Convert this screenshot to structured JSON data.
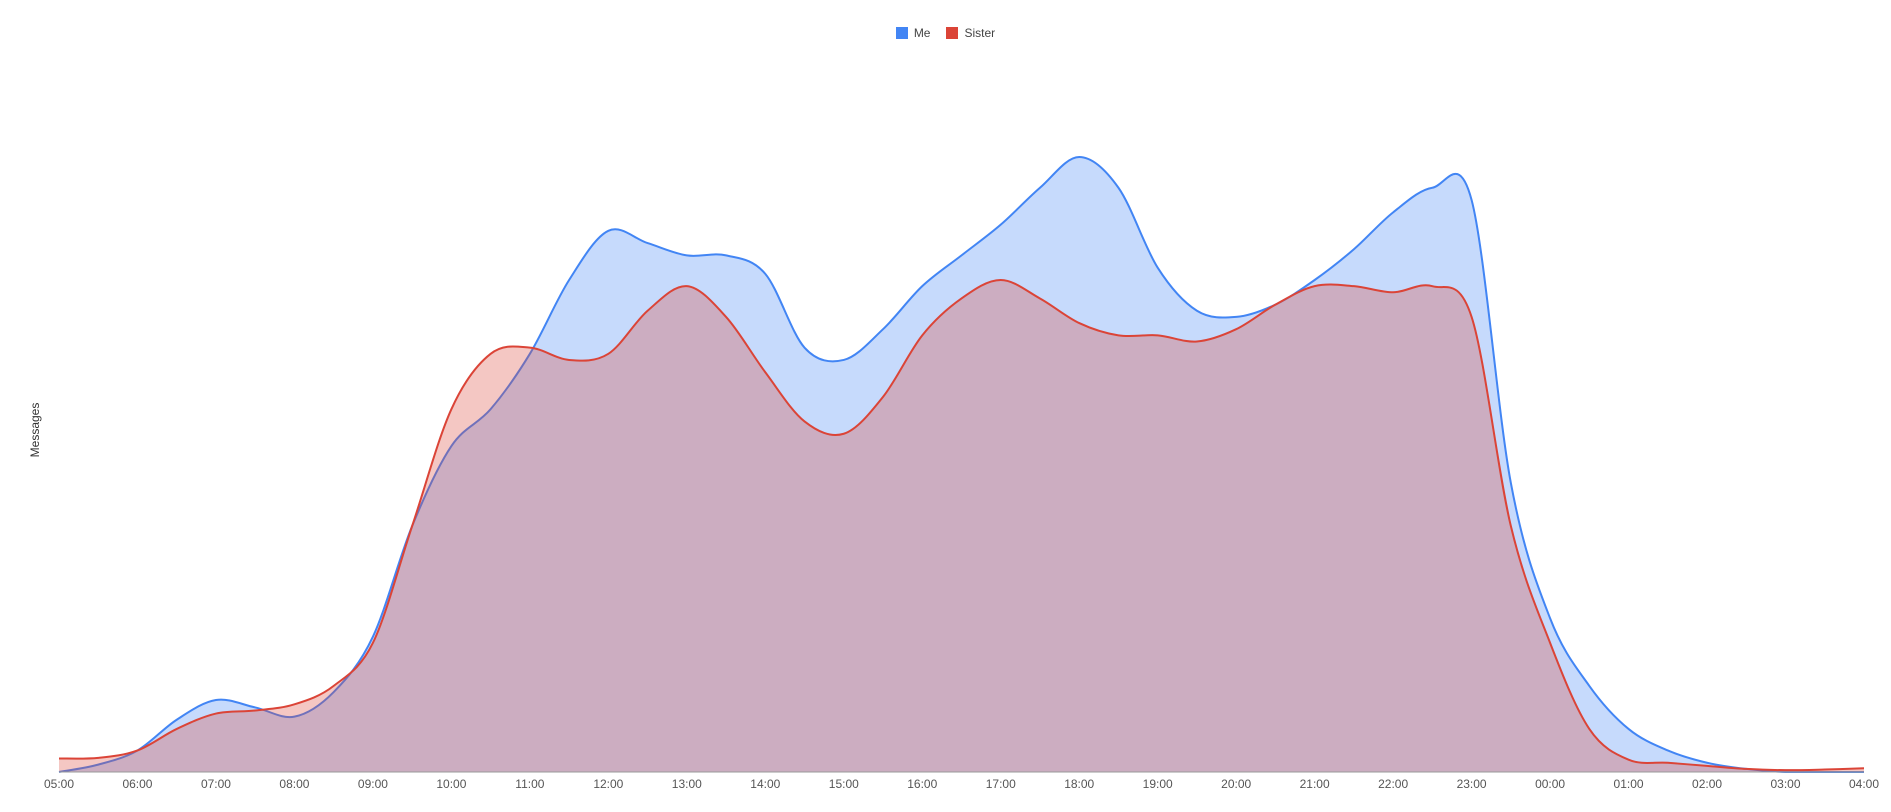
{
  "chart_data": {
    "type": "area",
    "title": "",
    "xlabel": "",
    "ylabel": "Messages",
    "legend_position": "top-center",
    "grid": false,
    "ylim": [
      0,
      100
    ],
    "x": [
      "05:00",
      "05:30",
      "06:00",
      "06:30",
      "07:00",
      "07:30",
      "08:00",
      "08:30",
      "09:00",
      "09:30",
      "10:00",
      "10:30",
      "11:00",
      "11:30",
      "12:00",
      "12:30",
      "13:00",
      "13:30",
      "14:00",
      "14:30",
      "15:00",
      "15:30",
      "16:00",
      "16:30",
      "17:00",
      "17:30",
      "18:00",
      "18:30",
      "19:00",
      "19:30",
      "20:00",
      "20:30",
      "21:00",
      "21:30",
      "22:00",
      "22:30",
      "23:00",
      "23:30",
      "00:00",
      "00:30",
      "01:00",
      "01:30",
      "02:00",
      "02:30",
      "03:00",
      "03:30",
      "04:00"
    ],
    "ticks": [
      "05:00",
      "06:00",
      "07:00",
      "08:00",
      "09:00",
      "10:00",
      "11:00",
      "12:00",
      "13:00",
      "14:00",
      "15:00",
      "16:00",
      "17:00",
      "18:00",
      "19:00",
      "20:00",
      "21:00",
      "22:00",
      "23:00",
      "00:00",
      "01:00",
      "02:00",
      "03:00",
      "04:00"
    ],
    "series": [
      {
        "name": "Me",
        "color": "#4285f4",
        "fill": "rgba(66,133,244,0.30)",
        "values": [
          0,
          1.2,
          3.5,
          8.5,
          11.7,
          10.5,
          9,
          13,
          22,
          40,
          53,
          59,
          68,
          80,
          88,
          86,
          84,
          84,
          81,
          69,
          67,
          72,
          79,
          84,
          89,
          95,
          100,
          95,
          82,
          75,
          74,
          76,
          80,
          85,
          91,
          95,
          93,
          47,
          25,
          14,
          7,
          3.5,
          1.5,
          0.5,
          0,
          0,
          0
        ]
      },
      {
        "name": "Sister",
        "color": "#db4437",
        "fill": "rgba(219,68,55,0.30)",
        "values": [
          2.2,
          2.3,
          3.5,
          7,
          9.5,
          10,
          11,
          14,
          21,
          40,
          59,
          68,
          69,
          67,
          68,
          75,
          79,
          74,
          65,
          57,
          55,
          61,
          71,
          77,
          80,
          77,
          73,
          71,
          71,
          70,
          72,
          76,
          79,
          79,
          78,
          79,
          74,
          40,
          21,
          7,
          2,
          1.5,
          1,
          0.5,
          0.3,
          0.4,
          0.6
        ]
      }
    ]
  }
}
